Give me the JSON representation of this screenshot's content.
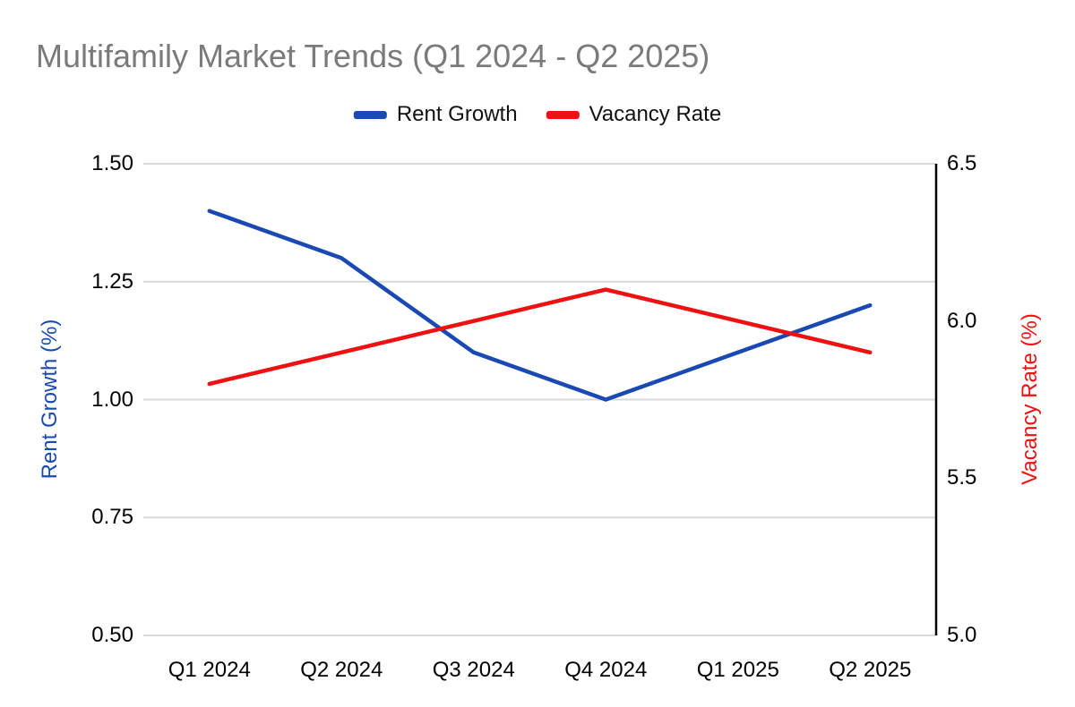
{
  "chart_data": {
    "type": "line",
    "title": "Multifamily Market Trends (Q1 2024 - Q2 2025)",
    "title_color": "#7a7a7a",
    "categories": [
      "Q1 2024",
      "Q2 2024",
      "Q3 2024",
      "Q4 2024",
      "Q1 2025",
      "Q2 2025"
    ],
    "series": [
      {
        "name": "Rent Growth",
        "axis": "left",
        "color": "#1a49b4",
        "values": [
          1.4,
          1.3,
          1.1,
          1.0,
          1.1,
          1.2
        ]
      },
      {
        "name": "Vacancy Rate",
        "axis": "right",
        "color": "#ee1111",
        "values": [
          5.8,
          5.9,
          6.0,
          6.1,
          6.0,
          5.9
        ]
      }
    ],
    "left_axis": {
      "title": "Rent Growth (%)",
      "color": "#1a49b4",
      "min": 0.5,
      "max": 1.5,
      "tick_values": [
        1.5,
        1.25,
        1.0,
        0.75,
        0.5
      ],
      "tick_labels": [
        "1.50",
        "1.25",
        "1.00",
        "0.75",
        "0.50"
      ]
    },
    "right_axis": {
      "title": "Vacancy Rate (%)",
      "color": "#ee1111",
      "min": 5.0,
      "max": 6.5,
      "tick_values": [
        6.5,
        6.0,
        5.5,
        5.0
      ],
      "tick_labels": [
        "6.5",
        "6.0",
        "5.5",
        "5.0"
      ]
    },
    "grid": true,
    "gridline_color": "#d9d9d9",
    "axis_line_color": "#000000",
    "tick_label_color": "#000000",
    "legend_position": "top"
  }
}
